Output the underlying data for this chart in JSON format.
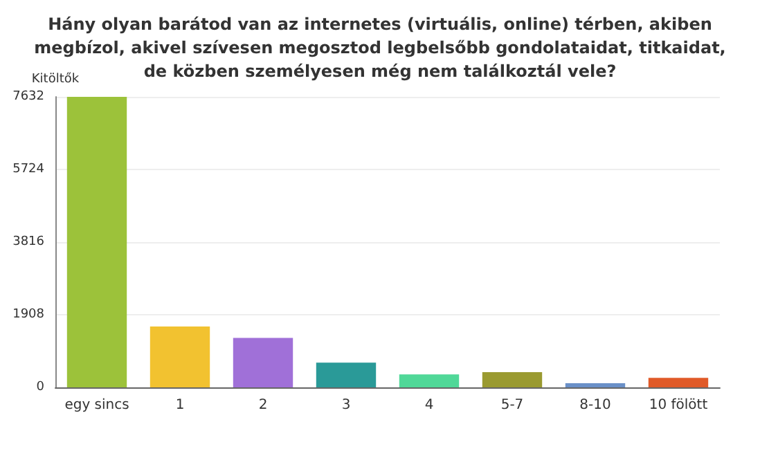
{
  "chart_data": {
    "type": "bar",
    "title": "Hány olyan barátod van az internetes (virtuális, online) térben, akiben\nmegbízol, akivel szívesen megosztod legbelsőbb gondolataidat, titkaidat,\nde közben személyesen még nem találkoztál vele?",
    "ylabel": "Kitöltők",
    "categories": [
      "egy sincs",
      "1",
      "2",
      "3",
      "4",
      "5-7",
      "8-10",
      "10 fölött"
    ],
    "values": [
      7632,
      1600,
      1300,
      650,
      340,
      400,
      110,
      250
    ],
    "colors": [
      "#9cc23a",
      "#f2c230",
      "#a070d8",
      "#2a9a98",
      "#50d898",
      "#9a9a30",
      "#6a90c8",
      "#e05a28"
    ],
    "ylim": [
      0,
      7632
    ],
    "yticks": [
      0,
      1908,
      3816,
      5724,
      7632
    ],
    "grid": "y"
  }
}
